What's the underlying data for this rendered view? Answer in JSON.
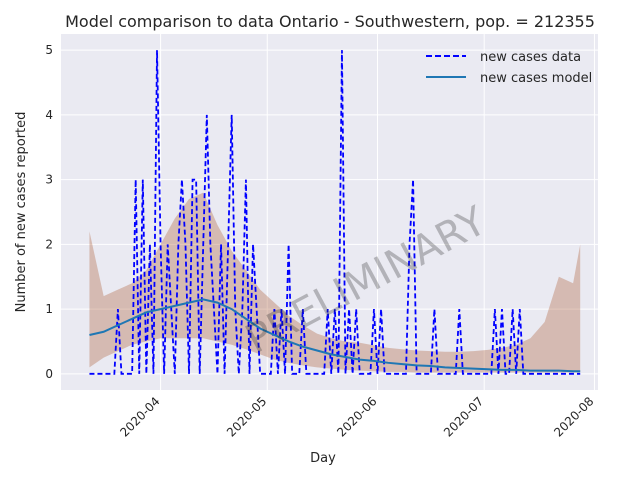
{
  "chart_data": {
    "type": "line",
    "title": "Model comparison to data Ontario - Southwestern, pop. = 212355",
    "xlabel": "Day",
    "ylabel": "Number of new cases reported",
    "watermark": "PRELIMINARY",
    "x_range": [
      "2020-03-04",
      "2020-08-02"
    ],
    "ylim": [
      -0.25,
      5.25
    ],
    "y_ticks": [
      0,
      1,
      2,
      3,
      4,
      5
    ],
    "x_ticks": [
      "2020-04",
      "2020-05",
      "2020-06",
      "2020-07",
      "2020-08"
    ],
    "x_tick_dates": [
      "2020-04-01",
      "2020-05-01",
      "2020-06-01",
      "2020-07-01",
      "2020-08-01"
    ],
    "grid": true,
    "legend_position": "top-right",
    "series": [
      {
        "name": "new cases data",
        "style": "dashed",
        "color": "#0000ff",
        "x": [
          "2020-03-12",
          "2020-03-19",
          "2020-03-20",
          "2020-03-21",
          "2020-03-22",
          "2020-03-23",
          "2020-03-24",
          "2020-03-25",
          "2020-03-26",
          "2020-03-27",
          "2020-03-28",
          "2020-03-29",
          "2020-03-30",
          "2020-03-31",
          "2020-04-01",
          "2020-04-02",
          "2020-04-03",
          "2020-04-04",
          "2020-04-05",
          "2020-04-06",
          "2020-04-07",
          "2020-04-08",
          "2020-04-09",
          "2020-04-10",
          "2020-04-11",
          "2020-04-12",
          "2020-04-13",
          "2020-04-14",
          "2020-04-15",
          "2020-04-16",
          "2020-04-17",
          "2020-04-18",
          "2020-04-19",
          "2020-04-20",
          "2020-04-21",
          "2020-04-22",
          "2020-04-23",
          "2020-04-24",
          "2020-04-25",
          "2020-04-26",
          "2020-04-27",
          "2020-04-28",
          "2020-04-29",
          "2020-04-30",
          "2020-05-01",
          "2020-05-02",
          "2020-05-03",
          "2020-05-04",
          "2020-05-05",
          "2020-05-06",
          "2020-05-07",
          "2020-05-08",
          "2020-05-09",
          "2020-05-10",
          "2020-05-11",
          "2020-05-12",
          "2020-05-13",
          "2020-05-14",
          "2020-05-15",
          "2020-05-16",
          "2020-05-17",
          "2020-05-18",
          "2020-05-19",
          "2020-05-20",
          "2020-05-21",
          "2020-05-22",
          "2020-05-23",
          "2020-05-24",
          "2020-05-25",
          "2020-05-26",
          "2020-05-27",
          "2020-05-28",
          "2020-05-29",
          "2020-05-30",
          "2020-05-31",
          "2020-06-01",
          "2020-06-02",
          "2020-06-03",
          "2020-06-04",
          "2020-06-05",
          "2020-06-06",
          "2020-06-07",
          "2020-06-08",
          "2020-06-09",
          "2020-06-10",
          "2020-06-11",
          "2020-06-12",
          "2020-06-13",
          "2020-06-14",
          "2020-06-15",
          "2020-06-16",
          "2020-06-17",
          "2020-06-18",
          "2020-06-19",
          "2020-06-20",
          "2020-06-21",
          "2020-06-22",
          "2020-06-23",
          "2020-06-24",
          "2020-06-25",
          "2020-06-26",
          "2020-06-27",
          "2020-06-28",
          "2020-06-29",
          "2020-06-30",
          "2020-07-01",
          "2020-07-02",
          "2020-07-03",
          "2020-07-04",
          "2020-07-05",
          "2020-07-06",
          "2020-07-07",
          "2020-07-08",
          "2020-07-09",
          "2020-07-10",
          "2020-07-11",
          "2020-07-12",
          "2020-07-13",
          "2020-07-14",
          "2020-07-15",
          "2020-07-16",
          "2020-07-17",
          "2020-07-18",
          "2020-07-19",
          "2020-07-20",
          "2020-07-21",
          "2020-07-22",
          "2020-07-23",
          "2020-07-24",
          "2020-07-25",
          "2020-07-26",
          "2020-07-27",
          "2020-07-28"
        ],
        "y": [
          0,
          0,
          1,
          0,
          0,
          0,
          0,
          3,
          0,
          3,
          0,
          2,
          0,
          5,
          2,
          0,
          2,
          1,
          0,
          2,
          3,
          2,
          0,
          3,
          3,
          0,
          2,
          4,
          2,
          1,
          0,
          2,
          0,
          2,
          4,
          1,
          0,
          1,
          3,
          0,
          2,
          1,
          0,
          0,
          0,
          0,
          1,
          0,
          1,
          0,
          2,
          0,
          0,
          0,
          1,
          0,
          0,
          0,
          0,
          0,
          0,
          1,
          0,
          1,
          0,
          5,
          0,
          1,
          0,
          1,
          0,
          0,
          0,
          0,
          1,
          0,
          1,
          0,
          0,
          0,
          0,
          0,
          0,
          0,
          2,
          3,
          0,
          0,
          0,
          0,
          0,
          1,
          0,
          0,
          0,
          0,
          0,
          0,
          1,
          0,
          0,
          0,
          0,
          0,
          0,
          0,
          0,
          0,
          1,
          0,
          1,
          0,
          0,
          1,
          0,
          1,
          0,
          0,
          0,
          0,
          0,
          0,
          0,
          0,
          0,
          0,
          0,
          0,
          0,
          0,
          0,
          0,
          0
        ]
      },
      {
        "name": "new cases model",
        "style": "solid",
        "color": "#1f77b4",
        "x": [
          "2020-03-12",
          "2020-03-16",
          "2020-03-20",
          "2020-03-24",
          "2020-03-28",
          "2020-04-01",
          "2020-04-05",
          "2020-04-09",
          "2020-04-13",
          "2020-04-17",
          "2020-04-21",
          "2020-04-25",
          "2020-04-29",
          "2020-05-03",
          "2020-05-07",
          "2020-05-11",
          "2020-05-15",
          "2020-05-19",
          "2020-05-23",
          "2020-05-27",
          "2020-05-31",
          "2020-06-04",
          "2020-06-08",
          "2020-06-12",
          "2020-06-16",
          "2020-06-20",
          "2020-06-24",
          "2020-06-28",
          "2020-07-02",
          "2020-07-06",
          "2020-07-10",
          "2020-07-14",
          "2020-07-18",
          "2020-07-22",
          "2020-07-26",
          "2020-07-28"
        ],
        "y": [
          0.6,
          0.65,
          0.75,
          0.85,
          0.95,
          1.0,
          1.05,
          1.1,
          1.15,
          1.1,
          1.0,
          0.85,
          0.7,
          0.6,
          0.5,
          0.42,
          0.36,
          0.3,
          0.26,
          0.22,
          0.2,
          0.17,
          0.15,
          0.13,
          0.12,
          0.1,
          0.09,
          0.08,
          0.07,
          0.06,
          0.06,
          0.05,
          0.05,
          0.05,
          0.04,
          0.04
        ]
      }
    ],
    "ensemble_band": {
      "x": [
        "2020-03-12",
        "2020-03-16",
        "2020-03-20",
        "2020-03-24",
        "2020-03-28",
        "2020-04-01",
        "2020-04-05",
        "2020-04-09",
        "2020-04-13",
        "2020-04-17",
        "2020-04-21",
        "2020-04-25",
        "2020-04-29",
        "2020-05-03",
        "2020-05-07",
        "2020-05-11",
        "2020-05-15",
        "2020-05-19",
        "2020-05-23",
        "2020-05-27",
        "2020-05-31",
        "2020-06-04",
        "2020-06-08",
        "2020-06-12",
        "2020-06-16",
        "2020-06-20",
        "2020-06-24",
        "2020-06-28",
        "2020-07-02",
        "2020-07-06",
        "2020-07-10",
        "2020-07-14",
        "2020-07-18",
        "2020-07-22",
        "2020-07-26",
        "2020-07-28"
      ],
      "low": [
        0.1,
        0.25,
        0.35,
        0.45,
        0.5,
        0.55,
        0.55,
        0.55,
        0.55,
        0.5,
        0.45,
        0.38,
        0.3,
        0.22,
        0.17,
        0.13,
        0.1,
        0.08,
        0.06,
        0.05,
        0.04,
        0.03,
        0.03,
        0.02,
        0.02,
        0.02,
        0.02,
        0.02,
        0.02,
        0.02,
        0.02,
        0.02,
        0.02,
        0.02,
        0.02,
        0.02
      ],
      "high": [
        2.2,
        1.2,
        1.3,
        1.4,
        1.6,
        2.0,
        2.4,
        2.7,
        2.8,
        2.3,
        1.9,
        1.6,
        1.3,
        1.1,
        0.9,
        0.75,
        0.62,
        0.55,
        0.5,
        0.48,
        0.44,
        0.4,
        0.38,
        0.36,
        0.35,
        0.34,
        0.34,
        0.35,
        0.37,
        0.4,
        0.45,
        0.55,
        0.8,
        1.5,
        1.4,
        2.0
      ]
    }
  }
}
